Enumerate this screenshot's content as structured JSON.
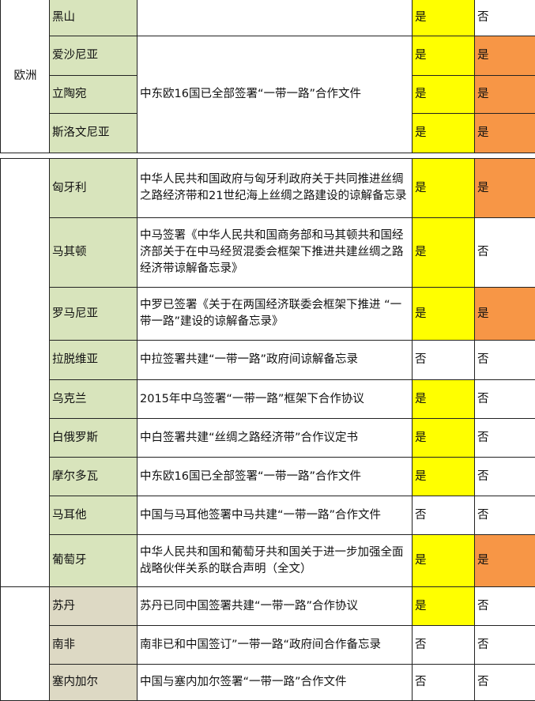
{
  "colors": {
    "europe_country": "#d8e4bc",
    "africa_country": "#ddd9c4",
    "yes_col4": "#ffff00",
    "yes_col5": "#f79646",
    "no": "#ffffff"
  },
  "section1": {
    "region": "欧洲",
    "merged_description": "中东欧16国已全部签署“一带一路”合作文件",
    "rows": [
      {
        "country": "黑山",
        "description": "",
        "col4": "是",
        "col5": "否"
      },
      {
        "country": "爱沙尼亚",
        "col4": "是",
        "col5": "是"
      },
      {
        "country": "立陶宛",
        "col4": "是",
        "col5": "是"
      },
      {
        "country": "斯洛文尼亚",
        "col4": "是",
        "col5": "是"
      }
    ]
  },
  "section2": {
    "europe_rows": [
      {
        "country": "匈牙利",
        "description": "中华人民共和国政府与匈牙利政府关于共同推进丝绸之路经济带和21世纪海上丝绸之路建设的谅解备忘录",
        "col4": "是",
        "col5": "是"
      },
      {
        "country": "马其顿",
        "description": "中马签署《中华人民共和国商务部和马其顿共和国经济部关于在中马经贸混委会框架下推进共建丝绸之路经济带谅解备忘录》",
        "col4": "是",
        "col5": "否"
      },
      {
        "country": "罗马尼亚",
        "description": "中罗已签署《关于在两国经济联委会框架下推进 “一带一路”建设的谅解备忘录》",
        "col4": "是",
        "col5": "是"
      },
      {
        "country": "拉脱维亚",
        "description": "中拉签署共建“一带一路”政府间谅解备忘录",
        "col4": "否",
        "col5": "否"
      },
      {
        "country": "乌克兰",
        "description": "2015年中乌签署“一带一路”框架下合作协议",
        "col4": "是",
        "col5": "否"
      },
      {
        "country": "白俄罗斯",
        "description": "中白签署共建“丝绸之路经济带”合作议定书",
        "col4": "是",
        "col5": "否"
      },
      {
        "country": "摩尔多瓦",
        "description": "中东欧16国已全部签署“一带一路”合作文件",
        "col4": "是",
        "col5": "否"
      },
      {
        "country": "马耳他",
        "description": "中国与马耳他签署中马共建“一带一路”合作文件",
        "col4": "否",
        "col5": "否"
      },
      {
        "country": "葡萄牙",
        "description": "中华人民共和国和葡萄牙共和国关于进一步加强全面战略伙伴关系的联合声明（全文）",
        "col4": "是",
        "col5": "是"
      }
    ],
    "africa_rows": [
      {
        "country": "苏丹",
        "description": "苏丹已同中国签署共建“一带一路”合作协议",
        "col4": "是",
        "col5": "否"
      },
      {
        "country": "南非",
        "description": "南非已和中国签订”一带一路“政府间合作备忘录",
        "col4": "否",
        "col5": "否"
      },
      {
        "country": "塞内加尔",
        "description": "中国与塞内加尔签署“一带一路”合作文件",
        "col4": "否",
        "col5": "否"
      }
    ]
  }
}
